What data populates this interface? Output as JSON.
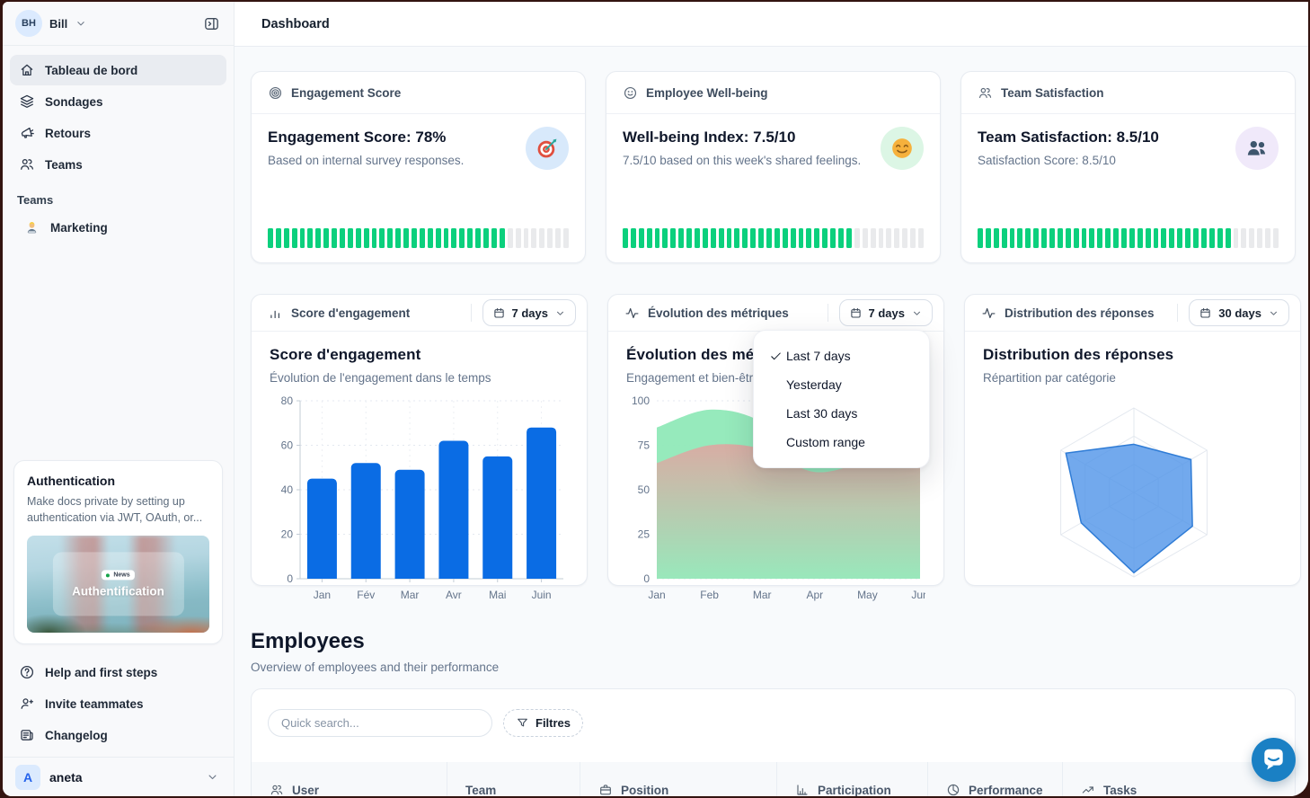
{
  "topbar": {
    "title": "Dashboard"
  },
  "sidebar": {
    "user": {
      "initials": "BH",
      "name": "Bill"
    },
    "nav": [
      {
        "label": "Tableau de bord",
        "icon": "home",
        "active": true
      },
      {
        "label": "Sondages",
        "icon": "layers",
        "active": false
      },
      {
        "label": "Retours",
        "icon": "megaphone",
        "active": false
      },
      {
        "label": "Teams",
        "icon": "users",
        "active": false
      }
    ],
    "teams_section": {
      "label": "Teams",
      "items": [
        {
          "label": "Marketing",
          "icon": "technologist-emoji"
        }
      ]
    },
    "promo_card": {
      "title": "Authentication",
      "body": "Make docs private by setting up authentication via JWT, OAuth, or...",
      "badge_label": "News",
      "image_title": "Authentification"
    },
    "footer_nav": [
      {
        "label": "Help and first steps",
        "icon": "help"
      },
      {
        "label": "Invite teammates",
        "icon": "user-plus"
      },
      {
        "label": "Changelog",
        "icon": "news"
      }
    ],
    "workspace": {
      "initial": "A",
      "name": "aneta"
    }
  },
  "stat_cards": [
    {
      "header": "Engagement Score",
      "icon": "target",
      "title": "Engagement Score: 78%",
      "subtitle": "Based on internal survey responses.",
      "emoji_icon": "target-emoji",
      "emoji_bg": "#d8e9fb",
      "progress_pct": 78
    },
    {
      "header": "Employee Well-being",
      "icon": "smile",
      "title": "Well-being Index: 7.5/10",
      "subtitle": "7.5/10 based on this week's shared feelings.",
      "emoji_icon": "smile-emoji",
      "emoji_bg": "#dcf6e5",
      "progress_pct": 75
    },
    {
      "header": "Team Satisfaction",
      "icon": "users",
      "title": "Team Satisfaction: 8.5/10",
      "subtitle": "Satisfaction Score: 8.5/10",
      "emoji_icon": "people-emoji",
      "emoji_bg": "#f0e9fa",
      "progress_pct": 85
    }
  ],
  "chart_cards": [
    {
      "header": "Score d'engagement",
      "icon": "bars",
      "range_label": "7 days",
      "title": "Score d'engagement",
      "subtitle": "Évolution de l'engagement dans le temps"
    },
    {
      "header": "Évolution des métriques",
      "icon": "activity",
      "range_label": "7 days",
      "title": "Évolution des métriques",
      "subtitle": "Engagement et bien-être"
    },
    {
      "header": "Distribution des réponses",
      "icon": "activity",
      "range_label": "30 days",
      "title": "Distribution des réponses",
      "subtitle": "Répartition par catégorie"
    }
  ],
  "dropdown_menu": {
    "items": [
      {
        "label": "Last 7 days",
        "checked": true
      },
      {
        "label": "Yesterday",
        "checked": false
      },
      {
        "label": "Last 30 days",
        "checked": false
      },
      {
        "label": "Custom range",
        "checked": false
      }
    ]
  },
  "chart_data": [
    {
      "type": "bar",
      "title": "Score d'engagement",
      "categories": [
        "Jan",
        "Fév",
        "Mar",
        "Avr",
        "Mai",
        "Juin"
      ],
      "values": [
        45,
        52,
        49,
        62,
        55,
        68
      ],
      "ylim": [
        0,
        80
      ],
      "yticks": [
        0,
        20,
        40,
        60,
        80
      ],
      "bar_color": "#0a6ce4",
      "grid": true
    },
    {
      "type": "area",
      "title": "Évolution des métriques",
      "x": [
        "Jan",
        "Feb",
        "Mar",
        "Apr",
        "May",
        "Jun"
      ],
      "ylim": [
        0,
        100
      ],
      "yticks": [
        0,
        25,
        50,
        75,
        100
      ],
      "grid": true,
      "series": [
        {
          "name": "engagement",
          "color": "#90e9b8",
          "values": [
            85,
            95,
            88,
            63,
            72,
            80
          ]
        },
        {
          "name": "bien-être",
          "color": "#e89e9e",
          "values": [
            65,
            75,
            73,
            60,
            66,
            72
          ]
        }
      ]
    },
    {
      "type": "radar",
      "title": "Distribution des réponses",
      "axes": 6,
      "max": 100,
      "values": [
        57,
        78,
        80,
        95,
        72,
        93
      ],
      "fill": "#4f93e8",
      "fill_opacity": 0.8,
      "stroke": "#2f7cd6",
      "grid_rings": 3
    }
  ],
  "employees": {
    "title": "Employees",
    "subtitle": "Overview of employees and their performance",
    "search_placeholder": "Quick search...",
    "filter_label": "Filtres",
    "columns": [
      {
        "label": "User",
        "icon": "users"
      },
      {
        "label": "Team",
        "icon": ""
      },
      {
        "label": "Position",
        "icon": "briefcase"
      },
      {
        "label": "Participation",
        "icon": "bar-chart"
      },
      {
        "label": "Performance",
        "icon": "pie"
      },
      {
        "label": "Tasks",
        "icon": "trend"
      }
    ]
  },
  "colors": {
    "accent_blue": "#0a6ce4",
    "progress_green": "#0bd07d",
    "progress_gray": "#e9eaec",
    "chat_fab": "#1a80c4",
    "area_green": "#90e9b8",
    "area_pink": "#e89e9e"
  }
}
